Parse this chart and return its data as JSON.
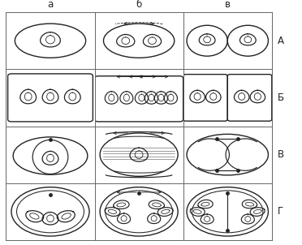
{
  "col_labels": [
    "а",
    "б",
    "в"
  ],
  "row_labels": [
    "А",
    "Б",
    "В",
    "Г"
  ],
  "bg_color": "#ffffff",
  "line_color": "#222222",
  "figsize": [
    3.72,
    3.02
  ],
  "dpi": 100
}
